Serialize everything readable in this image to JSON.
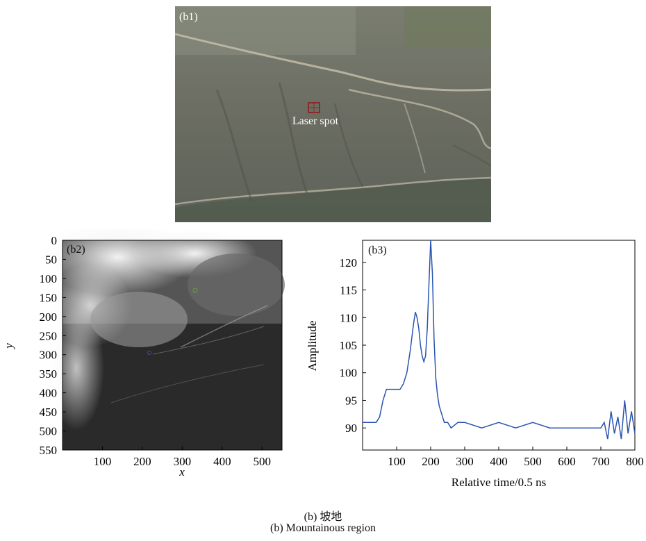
{
  "figure": {
    "caption_cn": "(b) 坡地",
    "caption_en": "(b) Mountainous region"
  },
  "panel_b1": {
    "tag": "(b1)",
    "annotation": "Laser spot",
    "colors": {
      "terrain": "#6d6e62",
      "village": "#8a8f82",
      "road": "#c9c2ad",
      "spot": "#8b2a2a"
    }
  },
  "panel_b2": {
    "tag": "(b2)",
    "xlabel": "x",
    "ylabel": "y",
    "xticks": [
      "100",
      "200",
      "300",
      "400",
      "500"
    ],
    "yticks": [
      "0",
      "50",
      "100",
      "150",
      "200",
      "250",
      "300",
      "350",
      "400",
      "450",
      "500",
      "550"
    ],
    "xlim": [
      0,
      550
    ],
    "ylim": [
      0,
      550
    ],
    "colormap": "grayscale"
  },
  "panel_b3": {
    "tag": "(b3)",
    "xlabel": "Relative time/0.5 ns",
    "ylabel": "Amplitude",
    "xticks": [
      "100",
      "200",
      "300",
      "400",
      "500",
      "600",
      "700",
      "800"
    ],
    "yticks": [
      "90",
      "95",
      "100",
      "105",
      "110",
      "115",
      "120"
    ]
  },
  "chart_data": {
    "type": "line",
    "xlabel": "Relative time/0.5 ns",
    "ylabel": "Amplitude",
    "xlim": [
      0,
      800
    ],
    "ylim": [
      86,
      124
    ],
    "line_color": "#2a54b0",
    "series": [
      {
        "x": [
          0,
          20,
          40,
          50,
          60,
          70,
          80,
          90,
          100,
          110,
          120,
          130,
          140,
          150,
          155,
          160,
          165,
          170,
          175,
          180,
          185,
          190,
          195,
          200,
          205,
          210,
          215,
          220,
          225,
          230,
          240,
          250,
          260,
          280,
          300,
          350,
          400,
          450,
          500,
          550,
          600,
          650,
          700,
          710,
          720,
          730,
          740,
          750,
          760,
          770,
          780,
          790,
          800
        ],
        "y": [
          91,
          91,
          91,
          92,
          95,
          97,
          97,
          97,
          97,
          97,
          98,
          100,
          104,
          109,
          111,
          110,
          108,
          105,
          103,
          102,
          103,
          108,
          116,
          124,
          118,
          106,
          99,
          96,
          94,
          93,
          91,
          91,
          90,
          91,
          91,
          90,
          91,
          90,
          91,
          90,
          90,
          90,
          90,
          91,
          88,
          93,
          89,
          92,
          88,
          95,
          89,
          93,
          89
        ]
      }
    ]
  }
}
